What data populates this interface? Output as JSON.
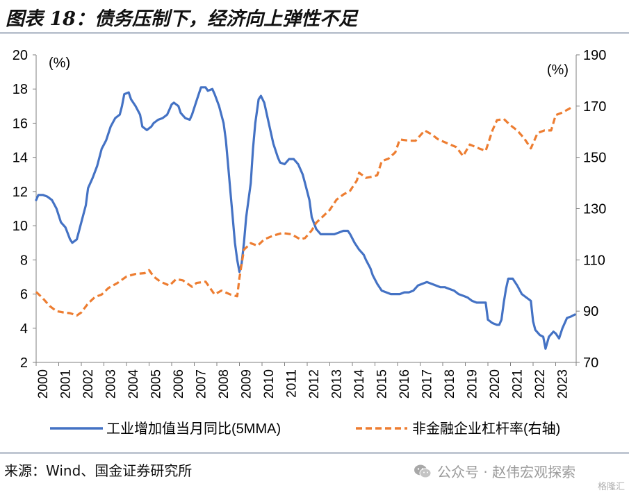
{
  "title": "图表 18：债务压制下，经济向上弹性不足",
  "source": "来源：Wind、国金证券研究所",
  "watermark": "公众号 · 赵伟宏观探索",
  "corner_mark": "格隆汇",
  "colors": {
    "series1": "#4472C4",
    "series2": "#ED7D31",
    "rule": "#1f3a5f"
  },
  "chart_data": {
    "type": "line",
    "left_axis": {
      "unit_label": "(%)",
      "range": [
        2,
        20
      ],
      "ticks": [
        2,
        4,
        6,
        8,
        10,
        12,
        14,
        16,
        18,
        20
      ]
    },
    "right_axis": {
      "unit_label": "(%)",
      "range": [
        70,
        190
      ],
      "ticks": [
        70,
        90,
        110,
        130,
        150,
        170,
        190
      ]
    },
    "x_axis": {
      "range": [
        2000,
        2023.9
      ],
      "tick_labels": [
        "2000",
        "2001",
        "2002",
        "2003",
        "2004",
        "2005",
        "2006",
        "2007",
        "2008",
        "2009",
        "2010",
        "2011",
        "2012",
        "2013",
        "2014",
        "2015",
        "2016",
        "2017",
        "2018",
        "2019",
        "2020",
        "2021",
        "2022",
        "2023"
      ]
    },
    "grid": false,
    "legend": {
      "placement": "bottom"
    },
    "series": [
      {
        "name": "工业增加值当月同比(5MMA)",
        "axis": "left",
        "style": "solid",
        "points": [
          [
            2000.0,
            11.5
          ],
          [
            2000.1,
            11.8
          ],
          [
            2000.3,
            11.8
          ],
          [
            2000.5,
            11.7
          ],
          [
            2000.7,
            11.5
          ],
          [
            2000.9,
            11.0
          ],
          [
            2001.1,
            10.2
          ],
          [
            2001.3,
            9.9
          ],
          [
            2001.5,
            9.2
          ],
          [
            2001.6,
            9.0
          ],
          [
            2001.8,
            9.2
          ],
          [
            2002.0,
            10.2
          ],
          [
            2002.2,
            11.2
          ],
          [
            2002.3,
            12.2
          ],
          [
            2002.5,
            12.8
          ],
          [
            2002.7,
            13.5
          ],
          [
            2002.9,
            14.5
          ],
          [
            2003.1,
            15.0
          ],
          [
            2003.3,
            15.8
          ],
          [
            2003.5,
            16.3
          ],
          [
            2003.7,
            16.5
          ],
          [
            2003.8,
            17.0
          ],
          [
            2003.9,
            17.7
          ],
          [
            2004.1,
            17.8
          ],
          [
            2004.2,
            17.4
          ],
          [
            2004.4,
            17.0
          ],
          [
            2004.6,
            16.5
          ],
          [
            2004.7,
            15.8
          ],
          [
            2004.9,
            15.6
          ],
          [
            2005.1,
            15.8
          ],
          [
            2005.2,
            16.0
          ],
          [
            2005.4,
            16.2
          ],
          [
            2005.6,
            16.3
          ],
          [
            2005.8,
            16.5
          ],
          [
            2005.9,
            16.8
          ],
          [
            2006.0,
            17.1
          ],
          [
            2006.1,
            17.2
          ],
          [
            2006.3,
            17.0
          ],
          [
            2006.4,
            16.6
          ],
          [
            2006.6,
            16.3
          ],
          [
            2006.8,
            16.2
          ],
          [
            2006.9,
            16.5
          ],
          [
            2007.1,
            17.3
          ],
          [
            2007.3,
            18.1
          ],
          [
            2007.5,
            18.1
          ],
          [
            2007.6,
            17.9
          ],
          [
            2007.8,
            18.0
          ],
          [
            2007.9,
            17.7
          ],
          [
            2008.1,
            17.0
          ],
          [
            2008.3,
            16.0
          ],
          [
            2008.4,
            15.0
          ],
          [
            2008.5,
            13.5
          ],
          [
            2008.6,
            12.0
          ],
          [
            2008.7,
            10.5
          ],
          [
            2008.8,
            9.0
          ],
          [
            2008.9,
            8.0
          ],
          [
            2009.0,
            7.3
          ],
          [
            2009.1,
            7.8
          ],
          [
            2009.2,
            9.0
          ],
          [
            2009.3,
            10.5
          ],
          [
            2009.5,
            12.5
          ],
          [
            2009.6,
            14.5
          ],
          [
            2009.7,
            16.0
          ],
          [
            2009.85,
            17.4
          ],
          [
            2009.95,
            17.6
          ],
          [
            2010.1,
            17.2
          ],
          [
            2010.3,
            16.0
          ],
          [
            2010.5,
            14.8
          ],
          [
            2010.7,
            14.0
          ],
          [
            2010.8,
            13.7
          ],
          [
            2011.0,
            13.6
          ],
          [
            2011.2,
            13.9
          ],
          [
            2011.4,
            13.9
          ],
          [
            2011.6,
            13.6
          ],
          [
            2011.8,
            13.0
          ],
          [
            2011.9,
            12.5
          ],
          [
            2012.1,
            11.5
          ],
          [
            2012.2,
            10.5
          ],
          [
            2012.4,
            9.8
          ],
          [
            2012.6,
            9.5
          ],
          [
            2012.8,
            9.5
          ],
          [
            2013.0,
            9.5
          ],
          [
            2013.2,
            9.5
          ],
          [
            2013.4,
            9.6
          ],
          [
            2013.6,
            9.7
          ],
          [
            2013.8,
            9.7
          ],
          [
            2013.9,
            9.5
          ],
          [
            2014.1,
            9.0
          ],
          [
            2014.3,
            8.6
          ],
          [
            2014.5,
            8.3
          ],
          [
            2014.6,
            8.0
          ],
          [
            2014.8,
            7.5
          ],
          [
            2014.9,
            7.1
          ],
          [
            2015.1,
            6.6
          ],
          [
            2015.3,
            6.2
          ],
          [
            2015.5,
            6.1
          ],
          [
            2015.7,
            6.0
          ],
          [
            2015.9,
            6.0
          ],
          [
            2016.1,
            6.0
          ],
          [
            2016.3,
            6.1
          ],
          [
            2016.5,
            6.1
          ],
          [
            2016.7,
            6.2
          ],
          [
            2016.9,
            6.5
          ],
          [
            2017.1,
            6.6
          ],
          [
            2017.3,
            6.7
          ],
          [
            2017.5,
            6.6
          ],
          [
            2017.7,
            6.5
          ],
          [
            2017.9,
            6.4
          ],
          [
            2018.1,
            6.4
          ],
          [
            2018.3,
            6.3
          ],
          [
            2018.5,
            6.2
          ],
          [
            2018.7,
            6.0
          ],
          [
            2018.9,
            5.9
          ],
          [
            2019.1,
            5.8
          ],
          [
            2019.3,
            5.6
          ],
          [
            2019.5,
            5.5
          ],
          [
            2019.7,
            5.5
          ],
          [
            2019.9,
            5.5
          ],
          [
            2020.0,
            4.5
          ],
          [
            2020.2,
            4.3
          ],
          [
            2020.4,
            4.2
          ],
          [
            2020.5,
            4.2
          ],
          [
            2020.6,
            4.5
          ],
          [
            2020.7,
            5.5
          ],
          [
            2020.8,
            6.3
          ],
          [
            2020.9,
            6.9
          ],
          [
            2021.1,
            6.9
          ],
          [
            2021.3,
            6.5
          ],
          [
            2021.5,
            6.0
          ],
          [
            2021.7,
            5.8
          ],
          [
            2021.8,
            5.7
          ],
          [
            2021.9,
            5.6
          ],
          [
            2022.0,
            4.4
          ],
          [
            2022.1,
            3.9
          ],
          [
            2022.3,
            3.6
          ],
          [
            2022.45,
            3.5
          ],
          [
            2022.55,
            2.8
          ],
          [
            2022.7,
            3.5
          ],
          [
            2022.9,
            3.8
          ],
          [
            2023.0,
            3.7
          ],
          [
            2023.15,
            3.4
          ],
          [
            2023.3,
            4.0
          ],
          [
            2023.5,
            4.6
          ],
          [
            2023.7,
            4.7
          ],
          [
            2023.85,
            4.8
          ]
        ]
      },
      {
        "name": "非金融企业杠杆率(右轴)",
        "axis": "right",
        "style": "dashed",
        "points": [
          [
            2000.0,
            97.5
          ],
          [
            2000.3,
            95.0
          ],
          [
            2000.6,
            92.0
          ],
          [
            2000.9,
            90.0
          ],
          [
            2001.2,
            89.5
          ],
          [
            2001.5,
            89.2
          ],
          [
            2001.8,
            88.3
          ],
          [
            2002.0,
            89.5
          ],
          [
            2002.3,
            93.0
          ],
          [
            2002.6,
            95.5
          ],
          [
            2002.9,
            96.5
          ],
          [
            2003.2,
            99.0
          ],
          [
            2003.6,
            101.0
          ],
          [
            2004.0,
            103.5
          ],
          [
            2004.4,
            104.5
          ],
          [
            2004.8,
            104.8
          ],
          [
            2005.0,
            106.0
          ],
          [
            2005.2,
            103.5
          ],
          [
            2005.5,
            101.5
          ],
          [
            2005.9,
            100.0
          ],
          [
            2006.2,
            102.5
          ],
          [
            2006.5,
            102.0
          ],
          [
            2006.9,
            99.5
          ],
          [
            2007.1,
            101.0
          ],
          [
            2007.5,
            101.5
          ],
          [
            2007.9,
            96.5
          ],
          [
            2008.2,
            98.0
          ],
          [
            2008.6,
            96.5
          ],
          [
            2008.9,
            95.8
          ],
          [
            2009.0,
            103.0
          ],
          [
            2009.2,
            114.0
          ],
          [
            2009.5,
            116.5
          ],
          [
            2009.8,
            115.5
          ],
          [
            2010.1,
            118.0
          ],
          [
            2010.5,
            119.5
          ],
          [
            2010.9,
            120.5
          ],
          [
            2011.3,
            120.0
          ],
          [
            2011.7,
            118.0
          ],
          [
            2011.9,
            118.5
          ],
          [
            2012.2,
            121.5
          ],
          [
            2012.4,
            124.5
          ],
          [
            2012.7,
            127.0
          ],
          [
            2013.0,
            129.5
          ],
          [
            2013.3,
            133.5
          ],
          [
            2013.6,
            135.5
          ],
          [
            2013.9,
            137.0
          ],
          [
            2014.2,
            141.0
          ],
          [
            2014.3,
            144.0
          ],
          [
            2014.6,
            142.0
          ],
          [
            2014.9,
            142.5
          ],
          [
            2015.1,
            143.0
          ],
          [
            2015.3,
            148.5
          ],
          [
            2015.6,
            149.5
          ],
          [
            2015.9,
            152.0
          ],
          [
            2016.1,
            157.0
          ],
          [
            2016.5,
            156.5
          ],
          [
            2016.8,
            156.5
          ],
          [
            2017.2,
            160.5
          ],
          [
            2017.5,
            159.0
          ],
          [
            2017.8,
            157.0
          ],
          [
            2018.2,
            155.5
          ],
          [
            2018.6,
            154.0
          ],
          [
            2018.9,
            150.5
          ],
          [
            2019.2,
            155.0
          ],
          [
            2019.6,
            153.5
          ],
          [
            2019.9,
            152.5
          ],
          [
            2020.2,
            160.5
          ],
          [
            2020.4,
            164.5
          ],
          [
            2020.7,
            165.0
          ],
          [
            2021.0,
            162.5
          ],
          [
            2021.3,
            160.5
          ],
          [
            2021.6,
            157.5
          ],
          [
            2021.9,
            153.5
          ],
          [
            2022.2,
            159.5
          ],
          [
            2022.5,
            160.5
          ],
          [
            2022.8,
            160.5
          ],
          [
            2023.0,
            166.5
          ],
          [
            2023.3,
            167.5
          ],
          [
            2023.7,
            169.5
          ]
        ]
      }
    ]
  }
}
